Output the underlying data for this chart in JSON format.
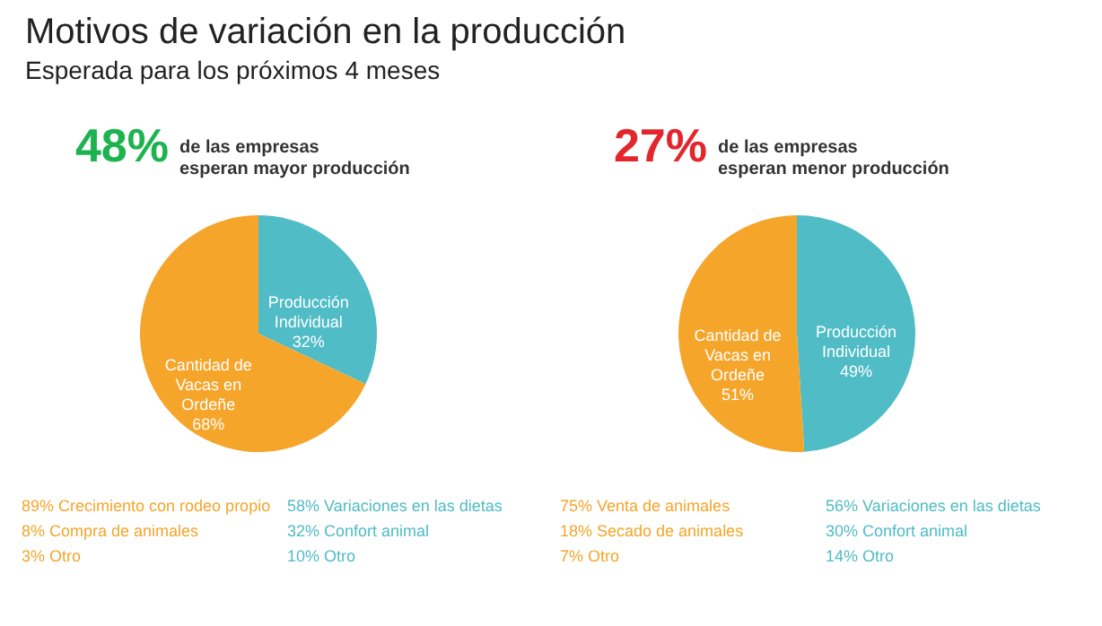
{
  "chart_data": [
    {
      "type": "pie",
      "title": "Motivos de variación en la producción",
      "subtitle": "Esperada para los próximos 4 meses",
      "categories": [
        "Producción\nIndividual",
        "Cantidad de\nVacas en\nOrdeñe"
      ],
      "values": [
        32,
        68
      ],
      "colors": [
        "#4fbcc6",
        "#f5a52a"
      ],
      "value_labels": [
        "32%",
        "68%"
      ],
      "annotations": [
        "48% de las empresas\nesperan mayor producción",
        "89% Crecimiento con rodeo propio",
        "8% Compra de animales",
        "3% Otro",
        "58% Variaciones en las dietas",
        "32% Confort animal",
        "10% Otro"
      ]
    },
    {
      "type": "pie",
      "categories": [
        "Producción\nIndividual",
        "Cantidad de\nVacas en\nOrdeñe"
      ],
      "values": [
        49,
        51
      ],
      "colors": [
        "#4fbcc6",
        "#f5a52a"
      ],
      "value_labels": [
        "49%",
        "51%"
      ],
      "annotations": [
        "27% de las empresas\nesperan menor producción",
        "75% Venta de animales",
        "18% Secado de animales",
        "7% Otro",
        "56% Variaciones en las dietas",
        "30% Confort animal",
        "14% Otro"
      ]
    }
  ]
}
